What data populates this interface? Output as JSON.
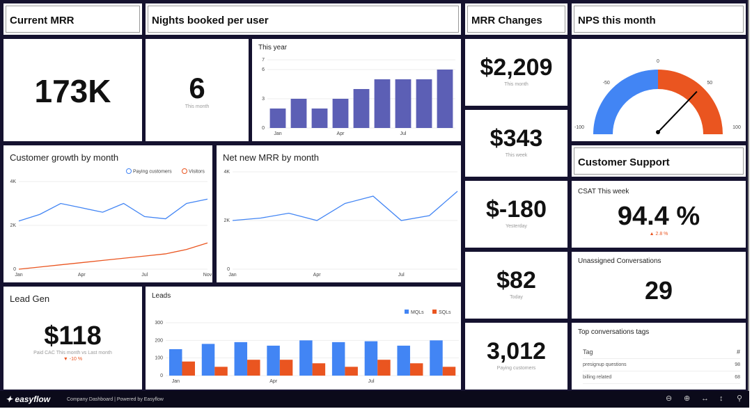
{
  "headers": {
    "current_mrr": "Current MRR",
    "nights": "Nights booked per user",
    "mrr_changes": "MRR Changes",
    "nps": "NPS this month",
    "support": "Customer Support"
  },
  "current_mrr": {
    "value": "173K"
  },
  "nights": {
    "value": "6",
    "label": "This month"
  },
  "mrr_changes": [
    {
      "value": "$2,209",
      "label": "This month"
    },
    {
      "value": "$343",
      "label": "This week"
    },
    {
      "value": "$-180",
      "label": "Yesterday"
    },
    {
      "value": "$82",
      "label": "Today"
    },
    {
      "value": "3,012",
      "label": "Paying customers"
    }
  ],
  "csat": {
    "title": "CSAT This week",
    "value": "94.4 %",
    "delta": "▲ 2.8 %"
  },
  "unassigned": {
    "title": "Unassigned Conversations",
    "value": "29"
  },
  "tags": {
    "title": "Top conversations tags",
    "col_tag": "Tag",
    "col_count": "#",
    "rows": [
      {
        "tag": "presignup questions",
        "count": "98"
      },
      {
        "tag": "billing related",
        "count": "68"
      }
    ]
  },
  "lead_gen": {
    "title": "Lead Gen",
    "value": "$118",
    "label": "Paid CAC This month vs Last month",
    "delta": "▼ -10 %"
  },
  "colors": {
    "bar": "#5c5fb5",
    "blue": "#4285f4",
    "orange": "#ea5520",
    "background": "#15122f"
  },
  "chart_data": [
    {
      "id": "nights_year",
      "type": "bar",
      "title": "This year",
      "x_ticks": [
        "Jan",
        "Apr",
        "Jul"
      ],
      "y_ticks": [
        0,
        3,
        6,
        7
      ],
      "ylim": [
        0,
        7
      ],
      "values": [
        2,
        3,
        2,
        3,
        4,
        5,
        5,
        5,
        6
      ]
    },
    {
      "id": "customer_growth",
      "type": "line",
      "title": "Customer growth by month",
      "x_ticks": [
        "Jan",
        "Apr",
        "Jul",
        "Nov"
      ],
      "y_ticks": [
        "0",
        "2K",
        "4K"
      ],
      "ylim": [
        0,
        4000
      ],
      "legend": "top-right",
      "series": [
        {
          "name": "Paying customers",
          "values": [
            2200,
            2500,
            3000,
            2800,
            2600,
            3000,
            2400,
            2300,
            3000,
            3200
          ]
        },
        {
          "name": "Visitors",
          "values": [
            0,
            100,
            200,
            300,
            400,
            500,
            600,
            700,
            900,
            1200
          ]
        }
      ]
    },
    {
      "id": "net_new_mrr",
      "type": "line",
      "title": "Net new MRR by month",
      "x_ticks": [
        "Jan",
        "Apr",
        "Jul"
      ],
      "y_ticks": [
        "0",
        "2K",
        "4K"
      ],
      "ylim": [
        0,
        4000
      ],
      "series": [
        {
          "values": [
            2000,
            2100,
            2300,
            2000,
            2700,
            3000,
            2000,
            2200,
            3200
          ]
        }
      ]
    },
    {
      "id": "leads",
      "type": "bar",
      "title": "Leads",
      "x_ticks": [
        "Jan",
        "Apr",
        "Jul"
      ],
      "y_ticks": [
        0,
        100,
        200,
        300
      ],
      "ylim": [
        0,
        300
      ],
      "legend": "top-right",
      "series": [
        {
          "name": "MQLs",
          "values": [
            150,
            180,
            190,
            170,
            200,
            190,
            195,
            170,
            200
          ]
        },
        {
          "name": "SQLs",
          "values": [
            80,
            50,
            90,
            90,
            70,
            50,
            90,
            70,
            50
          ]
        }
      ]
    },
    {
      "id": "nps_gauge",
      "type": "gauge",
      "min": -100,
      "max": 100,
      "ticks": [
        "-100",
        "-50",
        "0",
        "50",
        "100"
      ],
      "value": 47
    }
  ],
  "footer": {
    "logo": "easyflow",
    "caption": "Company Dashboard | Powered by Easyflow",
    "icons": [
      "zoom-out-icon",
      "zoom-in-icon",
      "fit-width-icon",
      "fit-height-icon",
      "pin-icon"
    ]
  }
}
